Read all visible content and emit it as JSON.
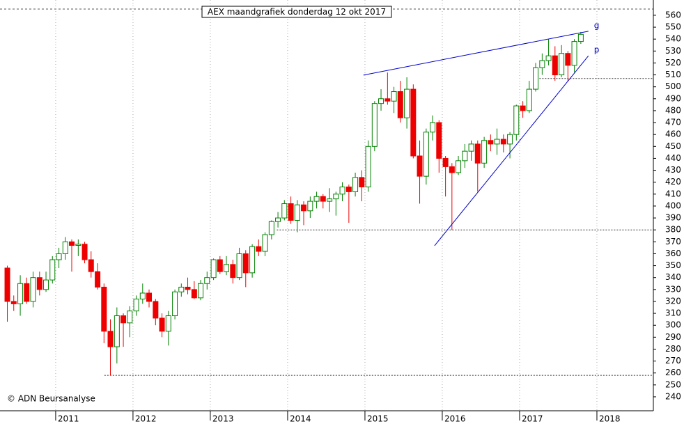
{
  "chart_data": {
    "type": "candlestick",
    "title": "AEX maandgrafiek donderdag 12 okt 2017",
    "credit": "© ADN Beursanalyse",
    "x": [
      2010.375,
      2010.458,
      2010.542,
      2010.625,
      2010.708,
      2010.792,
      2010.875,
      2010.958,
      2011.042,
      2011.125,
      2011.208,
      2011.292,
      2011.375,
      2011.458,
      2011.542,
      2011.625,
      2011.708,
      2011.792,
      2011.875,
      2011.958,
      2012.042,
      2012.125,
      2012.208,
      2012.292,
      2012.375,
      2012.458,
      2012.542,
      2012.625,
      2012.708,
      2012.792,
      2012.875,
      2012.958,
      2013.042,
      2013.125,
      2013.208,
      2013.292,
      2013.375,
      2013.458,
      2013.542,
      2013.625,
      2013.708,
      2013.792,
      2013.875,
      2013.958,
      2014.042,
      2014.125,
      2014.208,
      2014.292,
      2014.375,
      2014.458,
      2014.542,
      2014.625,
      2014.708,
      2014.792,
      2014.875,
      2014.958,
      2015.042,
      2015.125,
      2015.208,
      2015.292,
      2015.375,
      2015.458,
      2015.542,
      2015.625,
      2015.708,
      2015.792,
      2015.875,
      2015.958,
      2016.042,
      2016.125,
      2016.208,
      2016.292,
      2016.375,
      2016.458,
      2016.542,
      2016.625,
      2016.708,
      2016.792,
      2016.875,
      2016.958,
      2017.042,
      2017.125,
      2017.208,
      2017.292,
      2017.375,
      2017.458,
      2017.542,
      2017.625,
      2017.708,
      2017.792
    ],
    "open": [
      348,
      320,
      318,
      335,
      320,
      340,
      330,
      338,
      355,
      360,
      370,
      367,
      368,
      355,
      345,
      332,
      295,
      282,
      308,
      302,
      312,
      322,
      327,
      320,
      306,
      295,
      308,
      328,
      332,
      330,
      323,
      335,
      340,
      355,
      345,
      351,
      340,
      360,
      344,
      366,
      362,
      376,
      387,
      390,
      402,
      388,
      401,
      396,
      404,
      408,
      404,
      406,
      410,
      416,
      412,
      424,
      416,
      450,
      486,
      490,
      488,
      496,
      474,
      498,
      442,
      425,
      462,
      470,
      440,
      433,
      428,
      438,
      446,
      452,
      436,
      455,
      452,
      456,
      452,
      460,
      484,
      480,
      498,
      516,
      522,
      526,
      510,
      528,
      518,
      538
    ],
    "high": [
      350,
      325,
      342,
      340,
      345,
      345,
      345,
      358,
      365,
      374,
      372,
      372,
      370,
      362,
      352,
      335,
      305,
      315,
      310,
      316,
      325,
      335,
      330,
      322,
      310,
      312,
      330,
      335,
      340,
      337,
      338,
      345,
      356,
      358,
      358,
      355,
      365,
      363,
      368,
      372,
      378,
      388,
      395,
      405,
      408,
      405,
      404,
      408,
      412,
      410,
      415,
      412,
      420,
      418,
      428,
      430,
      455,
      488,
      498,
      512,
      500,
      505,
      508,
      502,
      455,
      465,
      476,
      472,
      442,
      436,
      442,
      452,
      455,
      455,
      458,
      460,
      465,
      460,
      462,
      485,
      488,
      505,
      520,
      528,
      540,
      534,
      535,
      530,
      540,
      546
    ],
    "low": [
      303,
      312,
      308,
      318,
      315,
      325,
      328,
      335,
      348,
      355,
      345,
      358,
      352,
      340,
      330,
      285,
      258,
      268,
      282,
      290,
      308,
      318,
      315,
      300,
      290,
      283,
      305,
      324,
      326,
      322,
      321,
      330,
      338,
      343,
      342,
      335,
      338,
      332,
      340,
      358,
      358,
      372,
      382,
      388,
      385,
      378,
      384,
      390,
      398,
      398,
      395,
      392,
      404,
      386,
      408,
      404,
      412,
      446,
      480,
      485,
      478,
      470,
      465,
      440,
      402,
      418,
      455,
      428,
      408,
      380,
      426,
      432,
      438,
      412,
      432,
      446,
      443,
      445,
      440,
      455,
      474,
      478,
      496,
      510,
      518,
      505,
      508,
      505,
      512,
      536
    ],
    "close": [
      320,
      318,
      335,
      320,
      340,
      330,
      338,
      355,
      360,
      370,
      367,
      368,
      355,
      345,
      332,
      295,
      282,
      308,
      302,
      312,
      322,
      327,
      320,
      306,
      295,
      308,
      328,
      332,
      330,
      323,
      335,
      340,
      355,
      345,
      351,
      340,
      360,
      344,
      366,
      362,
      376,
      387,
      390,
      402,
      388,
      401,
      396,
      404,
      408,
      404,
      406,
      410,
      416,
      412,
      424,
      416,
      450,
      486,
      490,
      488,
      496,
      474,
      498,
      442,
      425,
      462,
      470,
      440,
      433,
      428,
      438,
      446,
      452,
      436,
      455,
      452,
      456,
      452,
      460,
      484,
      480,
      498,
      516,
      522,
      526,
      510,
      528,
      518,
      538,
      544
    ],
    "up_color": "#008000",
    "down_color": "#ee0000",
    "xlim": [
      2010.28,
      2018.73
    ],
    "ylim": [
      228.3,
      572.8
    ],
    "xticks": [
      2011,
      2012,
      2013,
      2014,
      2015,
      2016,
      2017,
      2018
    ],
    "yticks": [
      240,
      250,
      260,
      270,
      280,
      290,
      300,
      310,
      320,
      330,
      340,
      350,
      360,
      370,
      380,
      390,
      400,
      410,
      420,
      430,
      440,
      450,
      460,
      470,
      480,
      490,
      500,
      510,
      520,
      530,
      540,
      550,
      560
    ],
    "trendlines": [
      {
        "label": "g",
        "x": [
          2014.98,
          2017.89
        ],
        "y": [
          509.8,
          546.6
        ],
        "color": "#0000cc"
      },
      {
        "label": "p",
        "x": [
          2015.9,
          2017.89
        ],
        "y": [
          366.7,
          526
        ],
        "color": "#0000cc"
      }
    ],
    "levels": [
      {
        "value": 507,
        "x_from": 2017.22
      },
      {
        "value": 380,
        "x_from": 2013.86
      },
      {
        "value": 258,
        "x_from": 2011.63
      }
    ]
  }
}
